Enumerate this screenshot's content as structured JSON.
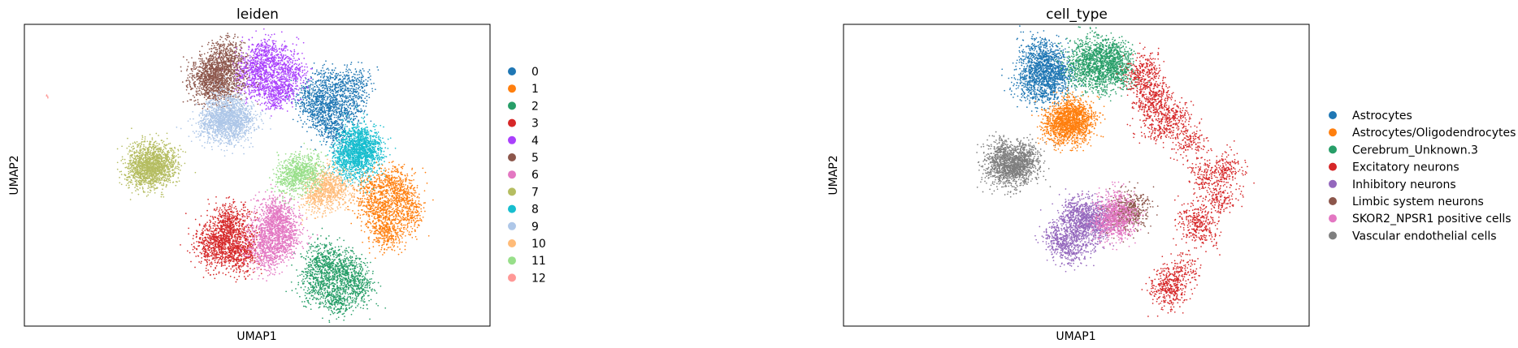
{
  "chart_data": [
    {
      "type": "scatter",
      "title": "leiden",
      "xlabel": "UMAP1",
      "ylabel": "UMAP2",
      "grid": false,
      "ticks": false,
      "legend_position": "right",
      "categories": [
        "0",
        "1",
        "2",
        "3",
        "4",
        "5",
        "6",
        "7",
        "8",
        "9",
        "10",
        "11",
        "12"
      ],
      "colors": [
        "#1f77b4",
        "#ff7f0e",
        "#279e68",
        "#d62728",
        "#aa40fc",
        "#8c564b",
        "#e377c2",
        "#b5bd61",
        "#17becf",
        "#aec7e8",
        "#ffbb78",
        "#98df8a",
        "#ff9896"
      ],
      "clusters": [
        {
          "category": "0",
          "x": [
            13.2,
            13.8,
            12.6,
            12.9,
            14.0,
            13.1,
            12.2,
            13.5,
            14.3,
            12.8
          ],
          "y": [
            9.8,
            10.6,
            9.2,
            11.0,
            9.5,
            8.6,
            10.1,
            8.0,
            10.9,
            9.9
          ]
        },
        {
          "category": "1",
          "x": [
            15.5,
            16.1,
            15.2,
            15.9,
            16.6,
            15.0,
            15.7,
            16.3,
            14.8,
            15.6
          ],
          "y": [
            3.6,
            4.4,
            2.8,
            5.2,
            3.2,
            4.9,
            2.3,
            4.0,
            3.9,
            1.9
          ]
        },
        {
          "category": "2",
          "x": [
            13.0,
            13.6,
            12.4,
            14.1,
            12.8,
            13.3,
            13.9,
            12.6,
            13.5,
            14.4
          ],
          "y": [
            -0.6,
            0.2,
            -1.2,
            -0.8,
            0.6,
            -1.7,
            -0.1,
            0.1,
            -2.0,
            -1.3
          ]
        },
        {
          "category": "3",
          "x": [
            8.6,
            9.1,
            8.1,
            9.5,
            8.8,
            8.3,
            9.3,
            8.9,
            7.9,
            9.0
          ],
          "y": [
            1.4,
            2.1,
            0.8,
            1.2,
            2.6,
            1.8,
            0.5,
            3.0,
            1.5,
            0.9
          ]
        },
        {
          "category": "4",
          "x": [
            10.3,
            11.0,
            9.8,
            11.5,
            10.7,
            10.0,
            11.2,
            10.5,
            9.6,
            10.9
          ],
          "y": [
            11.5,
            12.2,
            11.0,
            11.8,
            10.5,
            12.6,
            10.9,
            12.9,
            11.7,
            10.2
          ]
        },
        {
          "category": "5",
          "x": [
            8.2,
            8.7,
            7.8,
            8.5,
            9.0,
            8.0,
            8.4,
            7.6,
            8.8,
            8.3
          ],
          "y": [
            11.3,
            12.0,
            10.7,
            12.5,
            11.1,
            11.8,
            10.4,
            11.5,
            12.8,
            11.0
          ]
        },
        {
          "category": "6",
          "x": [
            10.6,
            11.1,
            10.2,
            10.9,
            11.4,
            10.4,
            10.8,
            11.0,
            10.3,
            10.7
          ],
          "y": [
            1.6,
            2.4,
            1.0,
            3.0,
            1.9,
            0.6,
            2.8,
            1.3,
            2.2,
            3.4
          ]
        },
        {
          "category": "7",
          "x": [
            5.3,
            5.8,
            4.9,
            5.6,
            6.1,
            5.1,
            5.5,
            5.9,
            5.0,
            5.4
          ],
          "y": [
            6.0,
            6.5,
            5.6,
            5.8,
            6.3,
            6.8,
            5.4,
            6.1,
            6.2,
            5.9
          ]
        },
        {
          "category": "8",
          "x": [
            14.1,
            14.6,
            13.8,
            14.3,
            14.9,
            14.0,
            14.5,
            14.2,
            13.9,
            14.7
          ],
          "y": [
            6.5,
            7.2,
            6.0,
            7.6,
            6.8,
            7.0,
            6.2,
            7.9,
            6.6,
            7.3
          ]
        },
        {
          "category": "9",
          "x": [
            8.5,
            9.1,
            8.0,
            8.8,
            9.4,
            8.2,
            8.9,
            8.6,
            9.2,
            8.4
          ],
          "y": [
            8.6,
            9.1,
            8.3,
            9.5,
            8.8,
            8.9,
            8.1,
            9.3,
            8.7,
            9.0
          ]
        },
        {
          "category": "10",
          "x": [
            12.7,
            13.2,
            12.5,
            13.5,
            12.9
          ],
          "y": [
            4.4,
            4.9,
            4.0,
            4.6,
            5.1
          ]
        },
        {
          "category": "11",
          "x": [
            11.6,
            12.0,
            11.4,
            12.2,
            11.8
          ],
          "y": [
            5.4,
            5.8,
            5.1,
            5.6,
            5.9
          ]
        },
        {
          "category": "12",
          "x": [
            1.0
          ],
          "y": [
            10.2
          ]
        }
      ]
    },
    {
      "type": "scatter",
      "title": "cell_type",
      "xlabel": "UMAP1",
      "ylabel": "UMAP2",
      "grid": false,
      "ticks": false,
      "legend_position": "right",
      "categories": [
        "Astrocytes",
        "Astrocytes/Oligodendrocytes",
        "Cerebrum_Unknown.3",
        "Excitatory neurons",
        "Inhibitory neurons",
        "Limbic system neurons",
        "SKOR2_NPSR1 positive cells",
        "Vascular endothelial cells"
      ],
      "colors": [
        "#1f77b4",
        "#ff7f0e",
        "#279e68",
        "#d62728",
        "#9467bd",
        "#8c564b",
        "#e377c2",
        "#7f7f7f"
      ],
      "clusters": [
        {
          "category": "Astrocytes",
          "x": [
            8.4,
            9.0,
            7.9,
            8.7,
            9.3,
            8.1,
            8.6,
            9.1,
            8.3,
            8.8
          ],
          "y": [
            11.5,
            12.1,
            10.9,
            12.6,
            11.2,
            11.9,
            10.4,
            11.7,
            12.9,
            11.0
          ]
        },
        {
          "category": "Astrocytes/Oligodendrocytes",
          "x": [
            9.4,
            10.0,
            9.1,
            9.8,
            10.3,
            9.5,
            9.7,
            10.1,
            9.2,
            9.9
          ],
          "y": [
            8.5,
            9.0,
            8.2,
            9.3,
            8.7,
            8.8,
            8.1,
            9.1,
            8.9,
            8.4
          ]
        },
        {
          "category": "Cerebrum_Unknown.3",
          "x": [
            10.8,
            11.4,
            10.3,
            11.8,
            11.0,
            10.6,
            11.5,
            11.2,
            10.1,
            11.9
          ],
          "y": [
            12.2,
            12.8,
            11.6,
            12.4,
            11.2,
            13.0,
            11.8,
            12.6,
            12.1,
            11.5
          ]
        },
        {
          "category": "Excitatory neurons",
          "x": [
            13.4,
            14.2,
            12.8,
            14.8,
            15.6,
            16.2,
            15.1,
            13.9,
            14.5,
            16.5,
            12.9,
            13.6,
            15.4,
            14.0,
            13.1
          ],
          "y": [
            10.2,
            9.0,
            11.2,
            7.6,
            5.5,
            4.2,
            3.0,
            -1.0,
            -0.2,
            5.8,
            11.8,
            8.4,
            2.2,
            -1.7,
            9.6
          ]
        },
        {
          "category": "Inhibitory neurons",
          "x": [
            9.7,
            10.3,
            9.2,
            10.8,
            10.0,
            9.5,
            10.6,
            11.2,
            9.9,
            10.4
          ],
          "y": [
            2.4,
            3.0,
            1.8,
            2.7,
            3.5,
            1.4,
            2.0,
            3.1,
            0.9,
            2.9
          ]
        },
        {
          "category": "Limbic system neurons",
          "x": [
            12.2,
            12.5,
            12.0
          ],
          "y": [
            3.4,
            3.6,
            3.1
          ]
        },
        {
          "category": "SKOR2_NPSR1 positive cells",
          "x": [
            11.5,
            11.8,
            11.3,
            12.0,
            11.6
          ],
          "y": [
            2.9,
            3.3,
            2.5,
            2.6,
            3.6
          ]
        },
        {
          "category": "Vascular endothelial cells",
          "x": [
            7.0,
            7.6,
            6.6,
            7.3,
            7.9,
            6.8,
            7.2,
            7.7,
            6.9,
            7.4
          ],
          "y": [
            6.2,
            6.6,
            5.8,
            6.0,
            6.4,
            6.9,
            5.6,
            6.3,
            6.5,
            5.9
          ]
        }
      ]
    }
  ]
}
